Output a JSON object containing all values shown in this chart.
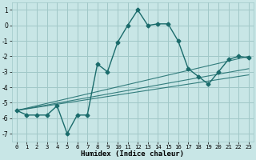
{
  "xlabel": "Humidex (Indice chaleur)",
  "xlim": [
    -0.5,
    23.5
  ],
  "ylim": [
    -7.5,
    1.5
  ],
  "xticks": [
    0,
    1,
    2,
    3,
    4,
    5,
    6,
    7,
    8,
    9,
    10,
    11,
    12,
    13,
    14,
    15,
    16,
    17,
    18,
    19,
    20,
    21,
    22,
    23
  ],
  "yticks": [
    1,
    0,
    -1,
    -2,
    -3,
    -4,
    -5,
    -6,
    -7
  ],
  "bg_color": "#c8e6e6",
  "grid_color": "#a0c8c8",
  "line_color": "#1a6b6b",
  "series_main": {
    "x": [
      0,
      1,
      2,
      3,
      4,
      5,
      6,
      7,
      8,
      9,
      10,
      11,
      12,
      13,
      14,
      15,
      16,
      17,
      18,
      19,
      20,
      21,
      22,
      23
    ],
    "y": [
      -5.5,
      -5.8,
      -5.8,
      -5.8,
      -5.2,
      -7.0,
      -5.8,
      -5.8,
      -2.5,
      -3.0,
      -1.1,
      0.0,
      1.0,
      0.0,
      0.1,
      0.1,
      -1.0,
      -2.8,
      -3.3,
      -3.8,
      -3.0,
      -2.2,
      -2.0,
      -2.1
    ]
  },
  "series_trend": [
    {
      "x": [
        0,
        23
      ],
      "y": [
        -5.5,
        -2.0
      ]
    },
    {
      "x": [
        0,
        23
      ],
      "y": [
        -5.5,
        -2.8
      ]
    },
    {
      "x": [
        0,
        23
      ],
      "y": [
        -5.5,
        -3.2
      ]
    }
  ]
}
